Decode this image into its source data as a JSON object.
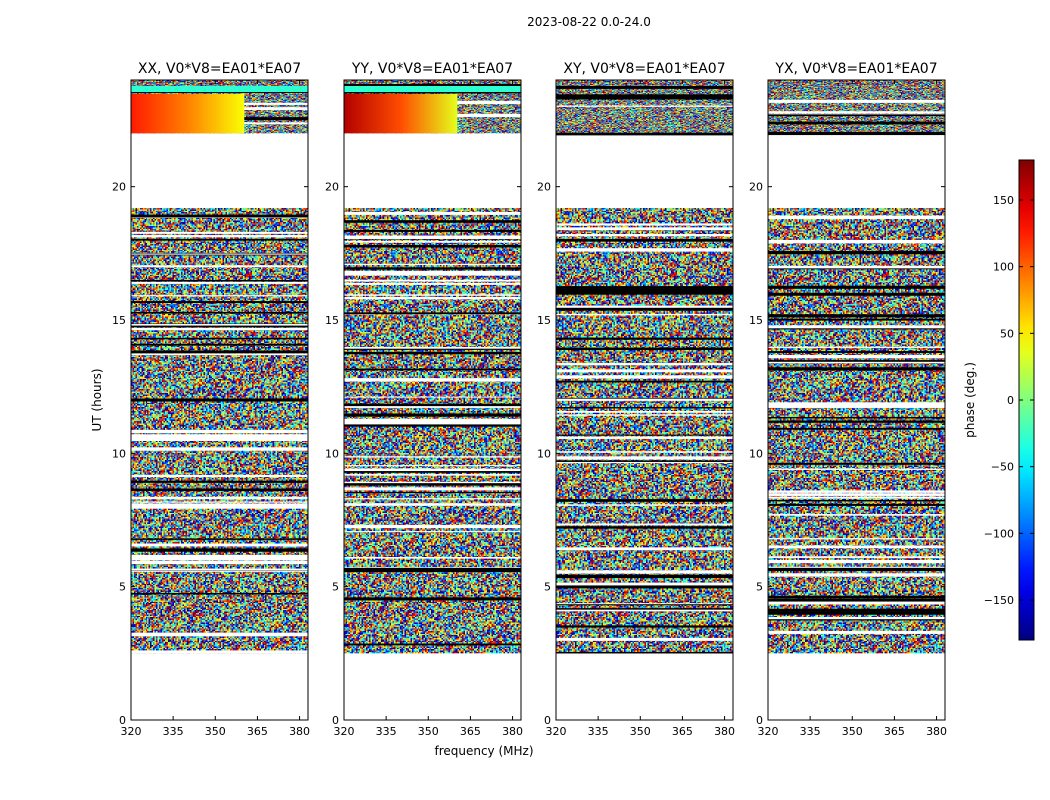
{
  "figure": {
    "suptitle": "2023-08-22 0.0-24.0"
  },
  "chart_data": {
    "type": "heatmap",
    "title": "2023-08-22 0.0-24.0",
    "xlabel": "frequency (MHz)",
    "ylabel": "UT (hours)",
    "xlim": [
      320,
      383
    ],
    "ylim": [
      0,
      24
    ],
    "xticks": [
      320,
      335,
      350,
      365,
      380
    ],
    "yticks": [
      0,
      5,
      10,
      15,
      20
    ],
    "panels": [
      {
        "title": "XX, V0*V8=EA01*EA07",
        "pol": "XX"
      },
      {
        "title": "YY, V0*V8=EA01*EA07",
        "pol": "YY"
      },
      {
        "title": "XY, V0*V8=EA01*EA07",
        "pol": "XY"
      },
      {
        "title": "YX, V0*V8=EA01*EA07",
        "pol": "YX"
      }
    ],
    "data_time_ranges_hours": [
      [
        2.5,
        19.2
      ],
      [
        22.0,
        24.0
      ]
    ],
    "colorbar": {
      "label": "phase (deg.)",
      "range": [
        -180,
        180
      ],
      "ticks": [
        -150,
        -100,
        -50,
        0,
        50,
        100,
        150
      ],
      "tick_labels": [
        "−150",
        "−100",
        "−50",
        "0",
        "50",
        "100",
        "150"
      ],
      "colormap": "jet"
    }
  }
}
